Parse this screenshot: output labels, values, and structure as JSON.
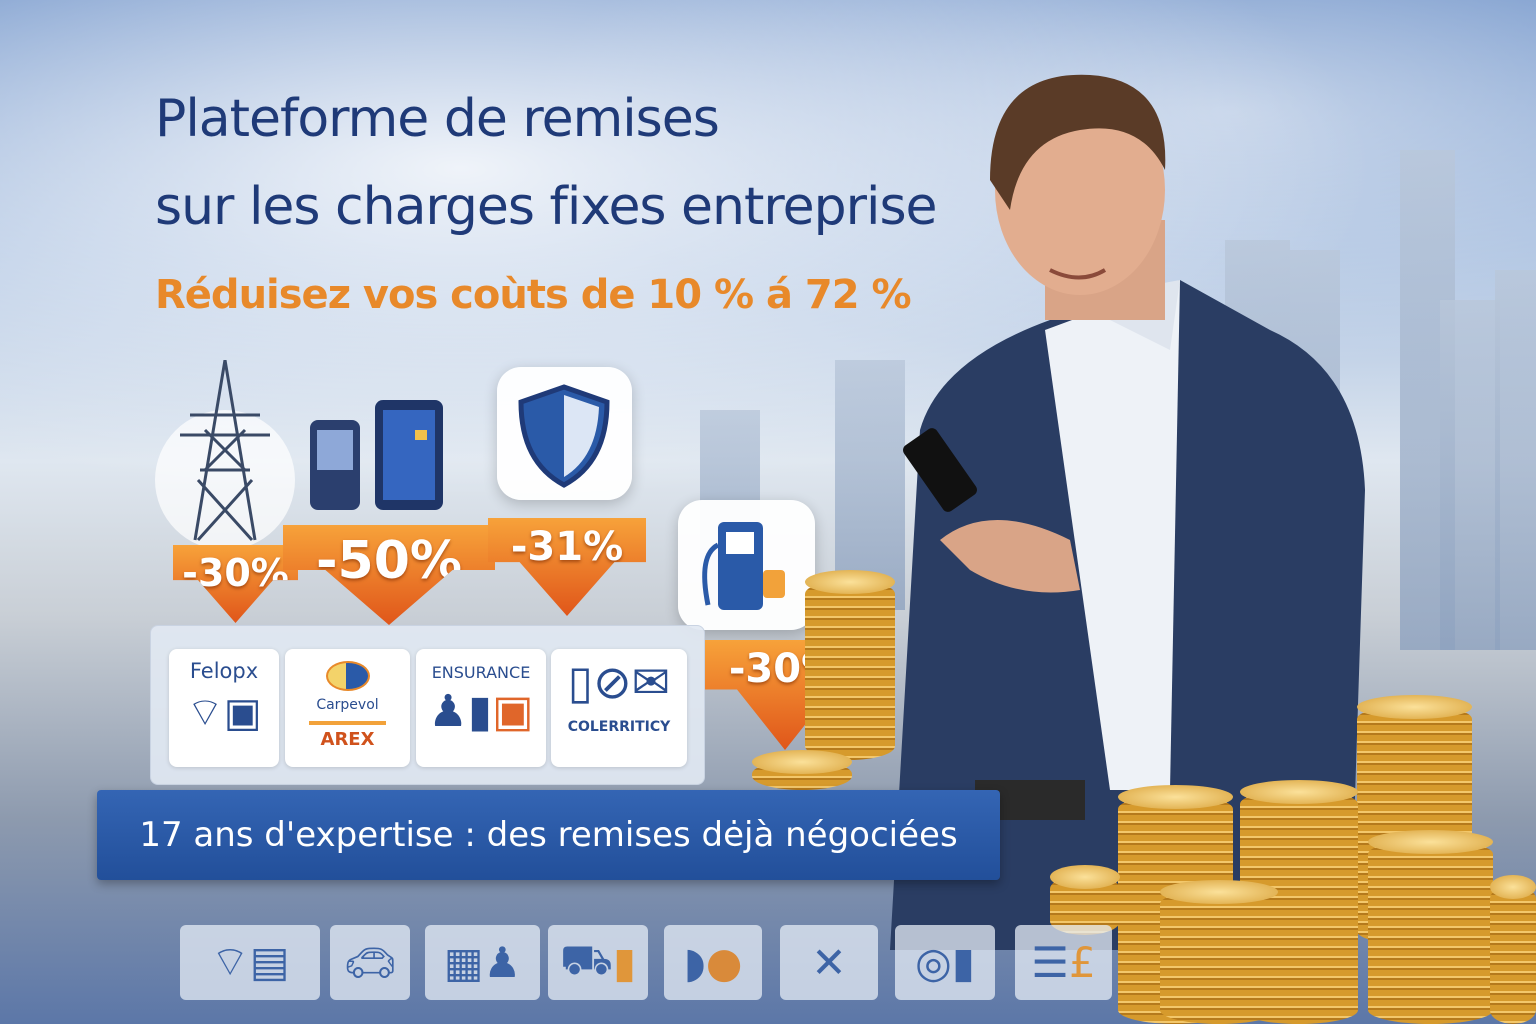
{
  "headline": {
    "line1": "Plateforme de remises",
    "line2": "sur les charges fixes entreprise"
  },
  "subheadline": "Réduisez vos coùts de 10 % á 72 %",
  "discounts": [
    {
      "category": "electricity",
      "icon": "power-pylon-icon",
      "label": "-30%"
    },
    {
      "category": "telephony",
      "icon": "mobile-phone-icon",
      "label": "-50%"
    },
    {
      "category": "insurance",
      "icon": "shield-icon",
      "label": "-31%"
    },
    {
      "category": "fuel",
      "icon": "fuel-pump-icon",
      "label": "-30%"
    }
  ],
  "partners": [
    {
      "name": "Felopx",
      "icon": "wifi-suitcase-icon"
    },
    {
      "name": "Carpevol",
      "name2": "AREX",
      "icon": "carpevol-logo"
    },
    {
      "name": "ENSURANCE",
      "icon": "insurance-figures-icon"
    },
    {
      "name": "COLERRITICY",
      "icon": "phone-mail-icon"
    }
  ],
  "banner": "17 ans d'expertise : des remises dėjà négociées",
  "bottom_icons": [
    "wifi-icon",
    "car-icon",
    "building-icon",
    "vehicle-fuel-icon",
    "supplies-icon",
    "tools-icon",
    "webcam-icon",
    "invoice-pound-icon"
  ],
  "colors": {
    "navy": "#1f3a78",
    "orange": "#e8892a",
    "banner": "#2a5aa8"
  }
}
